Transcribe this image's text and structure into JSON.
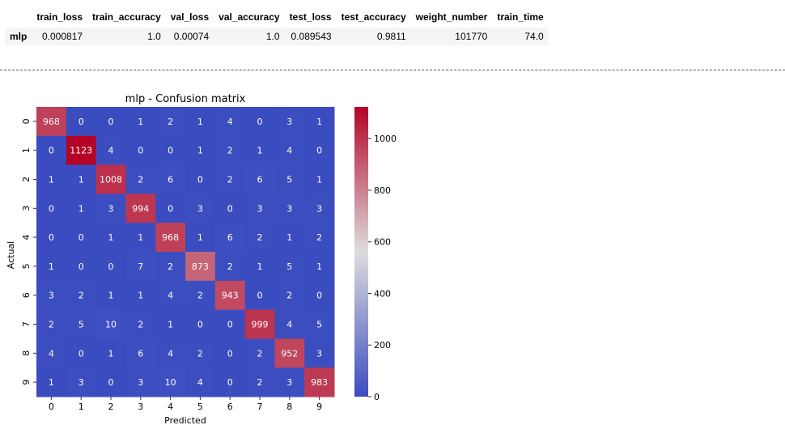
{
  "results_table": {
    "columns": [
      "",
      "train_loss",
      "train_accuracy",
      "val_loss",
      "val_accuracy",
      "test_loss",
      "test_accuracy",
      "weight_number",
      "train_time"
    ],
    "rows": [
      {
        "index": "mlp",
        "values": [
          "0.000817",
          "1.0",
          "0.00074",
          "1.0",
          "0.089543",
          "0.9811",
          "101770",
          "74.0"
        ]
      }
    ]
  },
  "chart_data": {
    "type": "heatmap",
    "title": "mlp - Confusion matrix",
    "xlabel": "Predicted",
    "ylabel": "Actual",
    "x_ticks": [
      "0",
      "1",
      "2",
      "3",
      "4",
      "5",
      "6",
      "7",
      "8",
      "9"
    ],
    "y_ticks": [
      "0",
      "1",
      "2",
      "3",
      "4",
      "5",
      "6",
      "7",
      "8",
      "9"
    ],
    "matrix": [
      [
        968,
        0,
        0,
        1,
        2,
        1,
        4,
        0,
        3,
        1
      ],
      [
        0,
        1123,
        4,
        0,
        0,
        1,
        2,
        1,
        4,
        0
      ],
      [
        1,
        1,
        1008,
        2,
        6,
        0,
        2,
        6,
        5,
        1
      ],
      [
        0,
        1,
        3,
        994,
        0,
        3,
        0,
        3,
        3,
        3
      ],
      [
        0,
        0,
        1,
        1,
        968,
        1,
        6,
        2,
        1,
        2
      ],
      [
        1,
        0,
        0,
        7,
        2,
        873,
        2,
        1,
        5,
        1
      ],
      [
        3,
        2,
        1,
        1,
        4,
        2,
        943,
        0,
        2,
        0
      ],
      [
        2,
        5,
        10,
        2,
        1,
        0,
        0,
        999,
        4,
        5
      ],
      [
        4,
        0,
        1,
        6,
        4,
        2,
        0,
        2,
        952,
        3
      ],
      [
        1,
        3,
        0,
        3,
        10,
        4,
        0,
        2,
        3,
        983
      ]
    ],
    "vmin": 0,
    "vmax": 1123,
    "colormap": "coolwarm",
    "colorbar_ticks": [
      0,
      200,
      400,
      600,
      800,
      1000
    ],
    "colors": {
      "low": "#3b4cc0",
      "mid": "#dddddd",
      "high": "#b40426"
    }
  }
}
